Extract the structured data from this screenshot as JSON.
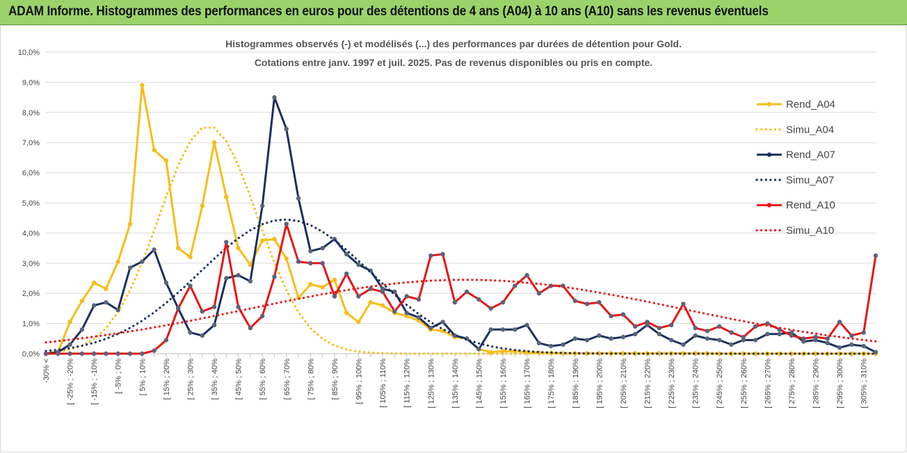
{
  "header": {
    "title": "ADAM Informe. Histogrammes des performances en euros pour des détentions de 4 ans (A04) à 10 ans (A10) sans les revenus éventuels"
  },
  "chart_data": {
    "type": "line",
    "title_line1": "Histogrammes observés (-) et modélisés (...) des performances par durées de détention pour Gold.",
    "title_line2": "Cotations entre janv. 1997 et juil. 2025. Pas de revenus disponibles ou pris en compte.",
    "ylim": [
      0,
      10
    ],
    "yticks": [
      "0,0%",
      "1,0%",
      "2,0%",
      "3,0%",
      "4,0%",
      "5,0%",
      "6,0%",
      "7,0%",
      "8,0%",
      "9,0%",
      "10,0%"
    ],
    "legend_position": "right",
    "x_labels": [
      "-30% <",
      "[ -25% ; -20%",
      "[ -15% ; -10%",
      "[ -5% ; 0%",
      "[ 5% ; 10%",
      "[ 15% ; 20%",
      "[ 25% ; 30%",
      "[ 35% ; 40%",
      "[ 45% ; 50%",
      "[ 55% ; 60%",
      "[ 65% ; 70%",
      "[ 75% ; 80%",
      "[ 85% ; 90%",
      "[ 95% ; 100%",
      "[ 105% ; 110%",
      "[ 115% ; 120%",
      "[ 125% ; 130%",
      "[ 135% ; 140%",
      "[ 145% ; 150%",
      "[ 155% ; 160%",
      "[ 165% ; 170%",
      "[ 175% ; 180%",
      "[ 185% ; 190%",
      "[ 195% ; 200%",
      "[ 205% ; 210%",
      "[ 215% ; 220%",
      "[ 225% ; 230%",
      "[ 235% ; 240%",
      "[ 245% ; 250%",
      "[ 255% ; 260%",
      "[ 265% ; 270%",
      "[ 275% ; 280%",
      "[ 285% ; 290%",
      "[ 295% ; 300%",
      "[ 305% ; 310%"
    ],
    "series": [
      {
        "name": "Rend_A04",
        "color": "#f6bd1a",
        "style": "solid",
        "markers": true,
        "values": [
          0,
          0.05,
          1.05,
          1.75,
          2.35,
          2.15,
          3.05,
          4.3,
          8.9,
          6.75,
          6.4,
          3.5,
          3.2,
          4.9,
          7.0,
          5.2,
          3.5,
          2.95,
          3.75,
          3.8,
          3.15,
          1.85,
          2.3,
          2.2,
          2.45,
          1.35,
          1.05,
          1.7,
          1.6,
          1.35,
          1.25,
          1.1,
          0.8,
          0.75,
          0.55,
          0.5,
          0.15,
          0.05,
          0.08,
          0.08,
          0.05,
          0.03,
          0.02,
          0.01,
          0.01,
          0.01,
          0.01,
          0.01,
          0.01,
          0.01,
          0.01,
          0.01,
          0.01,
          0.01,
          0.01,
          0.01,
          0,
          0,
          0,
          0,
          0,
          0,
          0,
          0,
          0,
          0,
          0,
          0,
          0,
          0
        ]
      },
      {
        "name": "Simu_A04",
        "color": "#f6bd1a",
        "style": "dotted",
        "markers": false,
        "mu": 35,
        "sigma": 20.3,
        "peak": 7.55
      },
      {
        "name": "Rend_A07",
        "color": "#1c2f5e",
        "style": "solid",
        "markers": true,
        "values": [
          0,
          0.05,
          0.3,
          0.8,
          1.6,
          1.7,
          1.45,
          2.85,
          3.05,
          3.45,
          2.35,
          1.5,
          0.7,
          0.6,
          0.95,
          2.5,
          2.6,
          2.4,
          4.9,
          8.5,
          7.45,
          5.15,
          3.4,
          3.5,
          3.8,
          3.3,
          2.95,
          2.75,
          2.15,
          2.05,
          1.35,
          1.2,
          0.85,
          1.05,
          0.6,
          0.5,
          0.15,
          0.8,
          0.8,
          0.8,
          0.95,
          0.35,
          0.25,
          0.3,
          0.5,
          0.45,
          0.6,
          0.5,
          0.55,
          0.65,
          0.95,
          0.65,
          0.45,
          0.3,
          0.6,
          0.5,
          0.45,
          0.3,
          0.45,
          0.45,
          0.65,
          0.65,
          0.7,
          0.4,
          0.45,
          0.35,
          0.2,
          0.3,
          0.25,
          0.05
        ]
      },
      {
        "name": "Simu_A07",
        "color": "#1c2f5e",
        "style": "dotted",
        "markers": false,
        "mu": 67,
        "sigma": 35.5,
        "peak": 4.45
      },
      {
        "name": "Rend_A10",
        "color": "#e81414",
        "style": "solid",
        "markers": true,
        "values": [
          0,
          0,
          0,
          0,
          0,
          0,
          0,
          0,
          0,
          0.1,
          0.45,
          1.5,
          2.25,
          1.4,
          1.55,
          3.7,
          1.55,
          0.85,
          1.25,
          2.55,
          4.3,
          3.05,
          3.0,
          3.0,
          1.9,
          2.65,
          1.9,
          2.15,
          2.05,
          1.4,
          1.9,
          1.8,
          3.25,
          3.3,
          1.7,
          2.05,
          1.8,
          1.5,
          1.7,
          2.25,
          2.6,
          2.0,
          2.25,
          2.25,
          1.75,
          1.65,
          1.7,
          1.25,
          1.3,
          0.9,
          1.05,
          0.85,
          0.95,
          1.65,
          0.85,
          0.75,
          0.9,
          0.7,
          0.55,
          0.9,
          1.0,
          0.8,
          0.6,
          0.5,
          0.55,
          0.5,
          1.05,
          0.6,
          0.7,
          3.25
        ]
      },
      {
        "name": "Simu_A10",
        "color": "#e81414",
        "style": "dotted",
        "markers": false,
        "mu": 142,
        "sigma": 90,
        "peak": 2.45
      }
    ]
  }
}
